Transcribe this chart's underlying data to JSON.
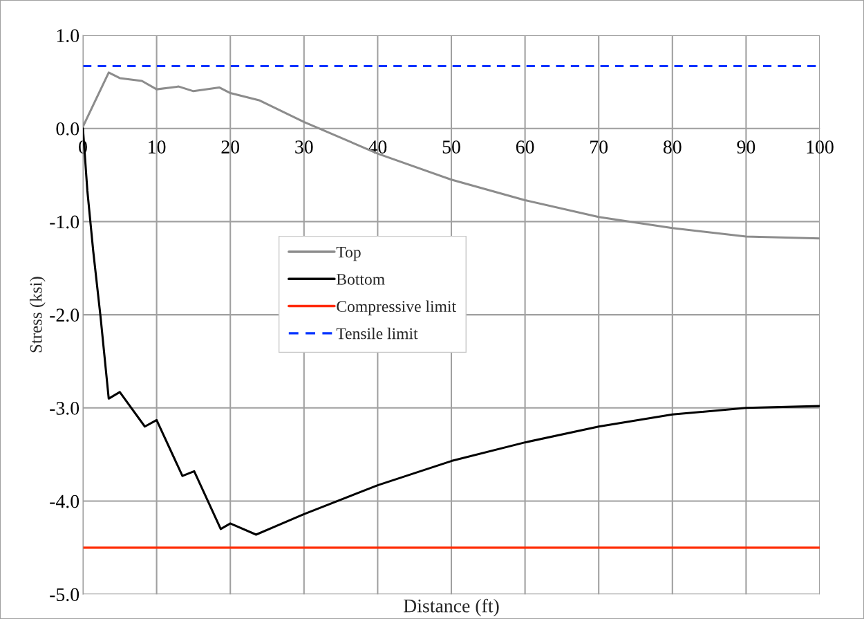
{
  "chart_data": {
    "type": "line",
    "xlabel": "Distance (ft)",
    "ylabel": "Stress (ksi)",
    "xlim": [
      0,
      100
    ],
    "ylim": [
      -5,
      1
    ],
    "xticks": [
      0,
      10,
      20,
      30,
      40,
      50,
      60,
      70,
      80,
      90,
      100
    ],
    "yticks": [
      {
        "value": -5,
        "label": "-5.0"
      },
      {
        "value": -4,
        "label": "-4.0"
      },
      {
        "value": -3,
        "label": "-3.0"
      },
      {
        "value": -2,
        "label": "-2.0"
      },
      {
        "value": -1,
        "label": "-1.0"
      },
      {
        "value": 0,
        "label": "0.0"
      },
      {
        "value": 1,
        "label": "1.0"
      }
    ],
    "grid": true,
    "legend": "center left",
    "marker": "none",
    "line_style": "solid",
    "series": [
      {
        "name": "Top",
        "color": "#8c8c8c",
        "x": [
          0,
          3.5,
          5,
          8,
          10,
          13,
          15,
          18.5,
          20,
          24,
          30,
          40,
          50,
          60,
          70,
          80,
          90,
          100
        ],
        "values": [
          0.02,
          0.6,
          0.54,
          0.51,
          0.42,
          0.45,
          0.4,
          0.44,
          0.38,
          0.3,
          0.07,
          -0.27,
          -0.55,
          -0.77,
          -0.95,
          -1.07,
          -1.16,
          -1.18
        ]
      },
      {
        "name": "Bottom",
        "color": "#000000",
        "x": [
          0,
          0.6,
          1.4,
          2.4,
          3.5,
          5,
          8.4,
          10,
          13.5,
          15.1,
          18.7,
          20,
          23.5,
          30,
          40,
          50,
          60,
          70,
          80,
          90,
          100
        ],
        "values": [
          0,
          -0.67,
          -1.32,
          -2.03,
          -2.9,
          -2.83,
          -3.2,
          -3.13,
          -3.73,
          -3.68,
          -4.3,
          -4.24,
          -4.36,
          -4.14,
          -3.83,
          -3.57,
          -3.37,
          -3.2,
          -3.07,
          -3.0,
          -2.98
        ]
      }
    ],
    "ref_lines": [
      {
        "axis": "y",
        "value": -4.5,
        "label": "Compressive limit",
        "color": "#ff2a00",
        "line_style": "solid"
      },
      {
        "axis": "y",
        "value": 0.67,
        "label": "Tensile limit",
        "color": "#0033ff",
        "line_style": "dashed"
      }
    ]
  }
}
